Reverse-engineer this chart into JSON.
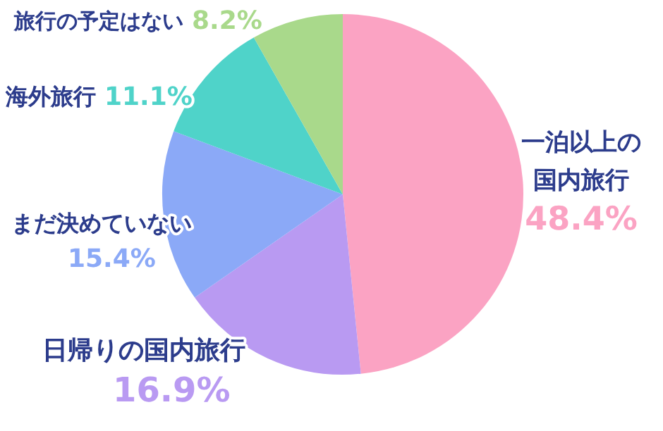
{
  "chart_data": {
    "type": "pie",
    "categories": [
      "一泊以上の国内旅行",
      "日帰りの国内旅行",
      "まだ決めていない",
      "海外旅行",
      "旅行の予定はない"
    ],
    "values": [
      48.4,
      16.9,
      15.4,
      11.1,
      8.2
    ],
    "colors": [
      "#fba3c3",
      "#b99af2",
      "#8ba9f7",
      "#4fd3c9",
      "#a9d98b"
    ],
    "value_labels": [
      "48.4%",
      "16.9%",
      "15.4%",
      "11.1%",
      "8.2%"
    ]
  }
}
